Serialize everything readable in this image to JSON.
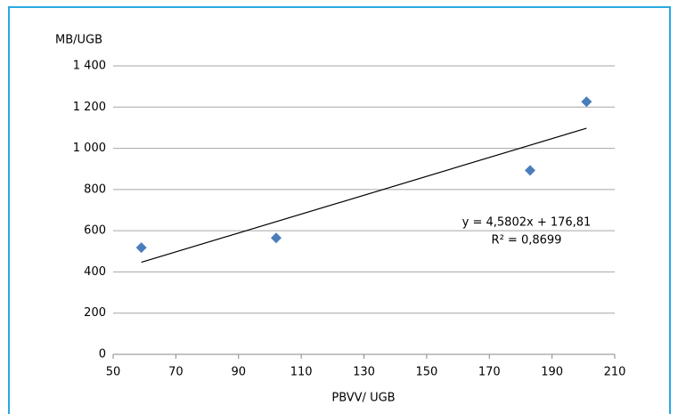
{
  "chart_data": {
    "type": "scatter",
    "y_label": "MB/UGB",
    "x_label": "PBVV/ UGB",
    "series": [
      {
        "color": "#4a7ebb",
        "x": [
          59,
          102,
          183,
          201
        ],
        "values": [
          518,
          565,
          893,
          1226
        ]
      }
    ],
    "trendline": {
      "slope": 4.5802,
      "intercept": 176.81,
      "equation": "y = 4,5802x + 176,81",
      "r_squared": "R² = 0,8699"
    },
    "xlim": [
      50,
      210
    ],
    "xticks": [
      50,
      70,
      90,
      110,
      130,
      150,
      170,
      190,
      210
    ],
    "ylim": [
      0,
      1400
    ],
    "yticks": [
      0,
      200,
      400,
      600,
      800,
      {
        "value": 1000,
        "label": "1 000"
      },
      {
        "value": 1200,
        "label": "1 200"
      },
      {
        "value": 1400,
        "label": "1 400"
      }
    ],
    "grid": true
  }
}
